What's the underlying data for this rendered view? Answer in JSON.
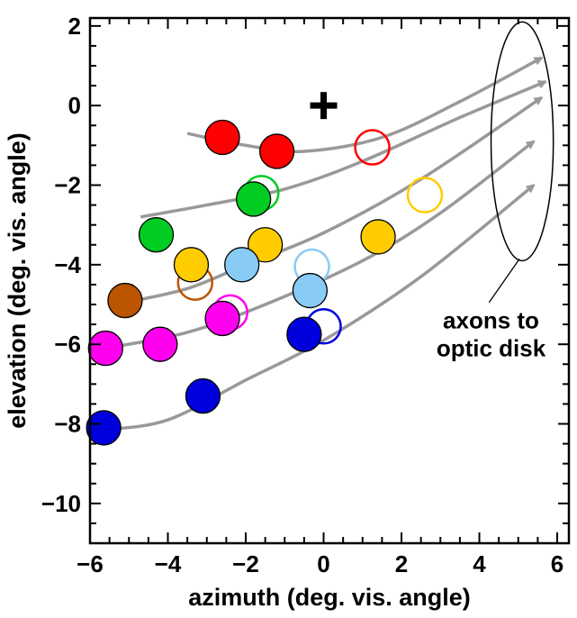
{
  "chart_data": {
    "type": "scatter",
    "xlabel": "azimuth (deg. vis. angle)",
    "ylabel": "elevation (deg. vis. angle)",
    "xlim": [
      -6.0,
      6.3
    ],
    "ylim": [
      -11.0,
      2.2
    ],
    "xticks": [
      -6,
      -4,
      -2,
      0,
      2,
      4,
      6
    ],
    "yticks": [
      -10,
      -8,
      -6,
      -4,
      -2,
      0,
      2
    ],
    "xtick_labels": [
      "−6",
      "−4",
      "−2",
      "0",
      "2",
      "4",
      "6"
    ],
    "ytick_labels": [
      "−10",
      "−8",
      "−6",
      "−4",
      "−2",
      "0",
      "2"
    ],
    "grid": false,
    "fixation": {
      "x": 0.0,
      "y": 0.0,
      "marker": "plus",
      "color": "#000000"
    },
    "filled_points": [
      {
        "x": -2.6,
        "y": -0.8,
        "color": "#ff0000"
      },
      {
        "x": -1.2,
        "y": -1.15,
        "color": "#ff0000"
      },
      {
        "x": -1.8,
        "y": -2.35,
        "color": "#00cc22"
      },
      {
        "x": -4.3,
        "y": -3.25,
        "color": "#00cc22"
      },
      {
        "x": -1.5,
        "y": -3.5,
        "color": "#ffcc00"
      },
      {
        "x": -3.4,
        "y": -4.0,
        "color": "#ffcc00"
      },
      {
        "x": 1.4,
        "y": -3.3,
        "color": "#ffcc00"
      },
      {
        "x": -2.1,
        "y": -4.0,
        "color": "#88ccf5"
      },
      {
        "x": -0.35,
        "y": -4.65,
        "color": "#88ccf5"
      },
      {
        "x": -5.1,
        "y": -4.9,
        "color": "#bb5500"
      },
      {
        "x": -2.6,
        "y": -5.35,
        "color": "#ff00ee"
      },
      {
        "x": -5.6,
        "y": -6.1,
        "color": "#ff00ee"
      },
      {
        "x": -4.2,
        "y": -6.0,
        "color": "#ff00ee"
      },
      {
        "x": -0.5,
        "y": -5.75,
        "color": "#0000dd"
      },
      {
        "x": -3.1,
        "y": -7.3,
        "color": "#0000dd"
      },
      {
        "x": -5.65,
        "y": -8.1,
        "color": "#0000dd"
      }
    ],
    "open_points": [
      {
        "x": 1.25,
        "y": -1.05,
        "color": "#ff0000"
      },
      {
        "x": -1.6,
        "y": -2.2,
        "color": "#00cc22"
      },
      {
        "x": 2.6,
        "y": -2.25,
        "color": "#ffcc00"
      },
      {
        "x": -3.3,
        "y": -4.45,
        "color": "#bb5500"
      },
      {
        "x": -0.3,
        "y": -4.05,
        "color": "#88ccf5"
      },
      {
        "x": -2.4,
        "y": -5.2,
        "color": "#ff00ee"
      },
      {
        "x": 0.0,
        "y": -5.55,
        "color": "#0000dd"
      }
    ],
    "axon_curves": [
      [
        [
          -3.5,
          -0.7
        ],
        [
          -2.0,
          -1.0
        ],
        [
          -0.5,
          -1.15
        ],
        [
          1.5,
          -0.8
        ],
        [
          3.5,
          0.1
        ],
        [
          5.6,
          1.2
        ]
      ],
      [
        [
          -4.7,
          -2.8
        ],
        [
          -3.0,
          -2.5
        ],
        [
          -1.0,
          -2.1
        ],
        [
          1.0,
          -1.4
        ],
        [
          3.5,
          -0.3
        ],
        [
          5.7,
          0.6
        ]
      ],
      [
        [
          -5.1,
          -4.95
        ],
        [
          -3.5,
          -4.6
        ],
        [
          -2.0,
          -4.0
        ],
        [
          0.0,
          -3.2
        ],
        [
          2.5,
          -1.85
        ],
        [
          5.6,
          0.2
        ]
      ],
      [
        [
          -5.6,
          -6.1
        ],
        [
          -3.5,
          -5.7
        ],
        [
          -1.5,
          -5.0
        ],
        [
          1.0,
          -3.9
        ],
        [
          3.0,
          -2.7
        ],
        [
          5.4,
          -0.9
        ]
      ],
      [
        [
          -5.65,
          -8.15
        ],
        [
          -4.0,
          -7.9
        ],
        [
          -2.0,
          -6.9
        ],
        [
          0.0,
          -5.9
        ],
        [
          2.5,
          -4.3
        ],
        [
          5.4,
          -2.0
        ]
      ]
    ],
    "curve_color": "#999999",
    "annotation": "axons to optic disk",
    "annotation_lines": [
      "axons to",
      "optic disk"
    ],
    "optic_disk_ellipse": {
      "cx": 5.1,
      "cy": -0.9,
      "rx": 0.8,
      "ry": 3.0
    }
  }
}
